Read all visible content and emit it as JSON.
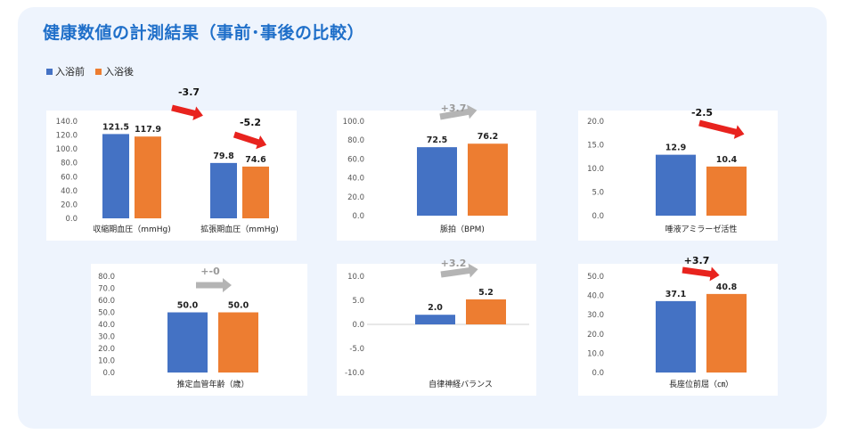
{
  "title": "健康数値の計測結果（事前･事後の比較）",
  "legend": [
    {
      "label": "入浴前",
      "color": "#4472c4"
    },
    {
      "label": "入浴後",
      "color": "#ed7d31"
    }
  ],
  "colors": {
    "before": "#4472c4",
    "after": "#ed7d31",
    "arrow_red": "#e8231e",
    "arrow_gray": "#b4b4b4"
  },
  "chart_data": [
    {
      "type": "bar",
      "categories": [
        "収縮期血圧（mmHg)",
        "拡張期血圧（mmHg)"
      ],
      "series": [
        {
          "name": "入浴前",
          "values": [
            121.5,
            79.8
          ]
        },
        {
          "name": "入浴後",
          "values": [
            117.9,
            74.6
          ]
        }
      ],
      "data_labels": {
        "before": [
          "121.5",
          "79.8"
        ],
        "after": [
          "117.9",
          "74.6"
        ]
      },
      "ylim": [
        0,
        140
      ],
      "yticks": [
        "0.0",
        "20.0",
        "40.0",
        "60.0",
        "80.0",
        "100.0",
        "120.0",
        "140.0"
      ],
      "annotations": [
        {
          "text": "-3.7",
          "arrow": "red"
        },
        {
          "text": "-5.2",
          "arrow": "red"
        }
      ]
    },
    {
      "type": "bar",
      "categories": [
        "脈拍（BPM)"
      ],
      "series": [
        {
          "name": "入浴前",
          "values": [
            72.5
          ]
        },
        {
          "name": "入浴後",
          "values": [
            76.2
          ]
        }
      ],
      "data_labels": {
        "before": [
          "72.5"
        ],
        "after": [
          "76.2"
        ]
      },
      "ylim": [
        0,
        100
      ],
      "yticks": [
        "0.0",
        "20.0",
        "40.0",
        "60.0",
        "80.0",
        "100.0"
      ],
      "annotations": [
        {
          "text": "+3.7",
          "arrow": "gray"
        }
      ]
    },
    {
      "type": "bar",
      "categories": [
        "唾液アミラーゼ活性"
      ],
      "series": [
        {
          "name": "入浴前",
          "values": [
            12.9
          ]
        },
        {
          "name": "入浴後",
          "values": [
            10.4
          ]
        }
      ],
      "data_labels": {
        "before": [
          "12.9"
        ],
        "after": [
          "10.4"
        ]
      },
      "ylim": [
        0,
        20
      ],
      "yticks": [
        "0.0",
        "5.0",
        "10.0",
        "15.0",
        "20.0"
      ],
      "annotations": [
        {
          "text": "-2.5",
          "arrow": "red"
        }
      ]
    },
    {
      "type": "bar",
      "categories": [
        "推定血管年齢（歳）"
      ],
      "series": [
        {
          "name": "入浴前",
          "values": [
            50.0
          ]
        },
        {
          "name": "入浴後",
          "values": [
            50.0
          ]
        }
      ],
      "data_labels": {
        "before": [
          "50.0"
        ],
        "after": [
          "50.0"
        ]
      },
      "ylim": [
        0,
        80
      ],
      "yticks": [
        "0.0",
        "10.0",
        "20.0",
        "30.0",
        "40.0",
        "50.0",
        "60.0",
        "70.0",
        "80.0"
      ],
      "annotations": [
        {
          "text": "+-0",
          "arrow": "gray"
        }
      ]
    },
    {
      "type": "bar",
      "categories": [
        "自律神経バランス"
      ],
      "series": [
        {
          "name": "入浴前",
          "values": [
            2.0
          ]
        },
        {
          "name": "入浴後",
          "values": [
            5.2
          ]
        }
      ],
      "data_labels": {
        "before": [
          "2.0"
        ],
        "after": [
          "5.2"
        ]
      },
      "ylim": [
        -10,
        10
      ],
      "yticks": [
        "-10.0",
        "-5.0",
        "0.0",
        "5.0",
        "10.0"
      ],
      "annotations": [
        {
          "text": "+3.2",
          "arrow": "gray"
        }
      ]
    },
    {
      "type": "bar",
      "categories": [
        "長座位前屈（㎝）"
      ],
      "series": [
        {
          "name": "入浴前",
          "values": [
            37.1
          ]
        },
        {
          "name": "入浴後",
          "values": [
            40.8
          ]
        }
      ],
      "data_labels": {
        "before": [
          "37.1"
        ],
        "after": [
          "40.8"
        ]
      },
      "ylim": [
        0,
        50
      ],
      "yticks": [
        "0.0",
        "10.0",
        "20.0",
        "30.0",
        "40.0",
        "50.0"
      ],
      "annotations": [
        {
          "text": "+3.7",
          "arrow": "red"
        }
      ]
    }
  ]
}
